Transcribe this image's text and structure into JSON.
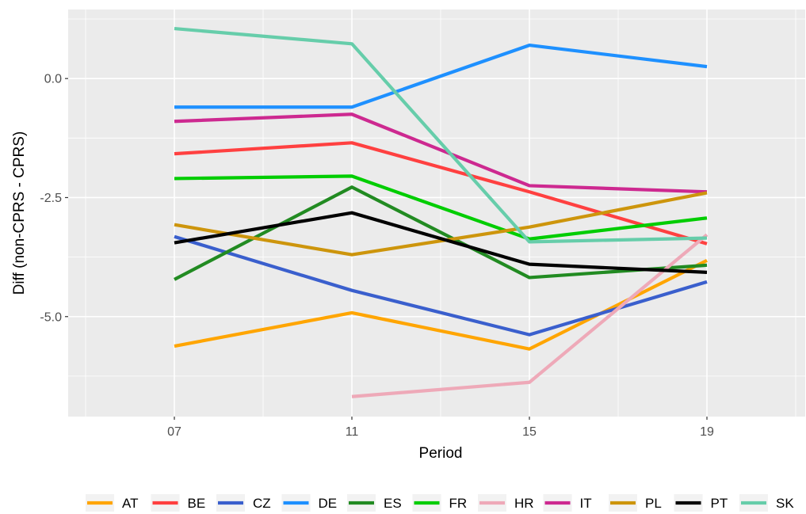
{
  "chart_data": {
    "type": "line",
    "title": "",
    "xlabel": "Period",
    "ylabel": "Diff (non-CPRS - CPRS)",
    "categories": [
      "07",
      "11",
      "15",
      "19"
    ],
    "ylim": [
      -7.1,
      1.45
    ],
    "yticks": [
      0.0,
      -2.5,
      -5.0
    ],
    "ytick_labels": [
      "0.0",
      "-2.5",
      "-5.0"
    ],
    "grid": true,
    "legend_position": "bottom",
    "background": "#ebebeb",
    "series": [
      {
        "name": "AT",
        "color": "#FFA500",
        "values": [
          -5.62,
          -4.92,
          -5.68,
          -3.82
        ]
      },
      {
        "name": "BE",
        "color": "#FF4040",
        "values": [
          -1.58,
          -1.35,
          -2.38,
          -3.47
        ]
      },
      {
        "name": "CZ",
        "color": "#3A5FCD",
        "values": [
          -3.32,
          -4.45,
          -5.38,
          -4.27
        ]
      },
      {
        "name": "DE",
        "color": "#1E90FF",
        "values": [
          -0.6,
          -0.6,
          0.7,
          0.25
        ]
      },
      {
        "name": "ES",
        "color": "#228B22",
        "values": [
          -4.22,
          -2.28,
          -4.18,
          -3.92
        ]
      },
      {
        "name": "FR",
        "color": "#00CD00",
        "values": [
          -2.1,
          -2.05,
          -3.37,
          -2.93
        ]
      },
      {
        "name": "HR",
        "color": "#EEA9B8",
        "values": [
          null,
          -6.68,
          -6.38,
          -3.28
        ]
      },
      {
        "name": "IT",
        "color": "#CD2990",
        "values": [
          -0.9,
          -0.75,
          -2.25,
          -2.38
        ]
      },
      {
        "name": "PL",
        "color": "#CD950C",
        "values": [
          -3.07,
          -3.7,
          -3.12,
          -2.4
        ]
      },
      {
        "name": "PT",
        "color": "#000000",
        "values": [
          -3.45,
          -2.82,
          -3.9,
          -4.07
        ]
      },
      {
        "name": "SK",
        "color": "#66CDAA",
        "values": [
          1.05,
          0.73,
          -3.43,
          -3.35
        ]
      }
    ]
  }
}
